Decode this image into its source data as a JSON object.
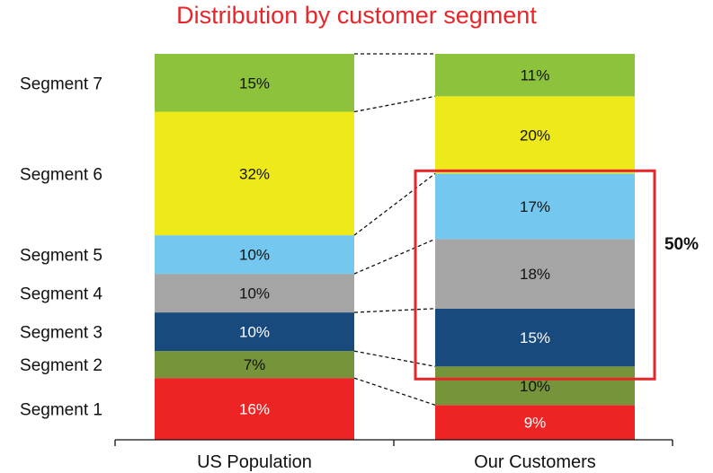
{
  "chart_data": {
    "type": "bar",
    "stacked": true,
    "orientation": "vertical",
    "title": "Distribution by customer segment",
    "categories": [
      "US Population",
      "Our Customers"
    ],
    "series": [
      {
        "name": "Segment 1",
        "values": [
          16,
          9
        ],
        "labels": [
          "16%",
          "9%"
        ],
        "color": "#ee2424",
        "label_color": "#ffffff"
      },
      {
        "name": "Segment 2",
        "values": [
          7,
          10
        ],
        "labels": [
          "7%",
          "10%"
        ],
        "color": "#76943a",
        "label_color": "#111111"
      },
      {
        "name": "Segment 3",
        "values": [
          10,
          15
        ],
        "labels": [
          "10%",
          "15%"
        ],
        "color": "#184a7e",
        "label_color": "#ffffff"
      },
      {
        "name": "Segment 4",
        "values": [
          10,
          18
        ],
        "labels": [
          "10%",
          "18%"
        ],
        "color": "#a5a5a5",
        "label_color": "#111111"
      },
      {
        "name": "Segment 5",
        "values": [
          10,
          17
        ],
        "labels": [
          "10%",
          "17%"
        ],
        "color": "#74c7ee",
        "label_color": "#111111"
      },
      {
        "name": "Segment 6",
        "values": [
          32,
          20
        ],
        "labels": [
          "32%",
          "20%"
        ],
        "color": "#eeea19",
        "label_color": "#111111"
      },
      {
        "name": "Segment 7",
        "values": [
          15,
          11
        ],
        "labels": [
          "15%",
          "11%"
        ],
        "color": "#8cc23c",
        "label_color": "#111111"
      }
    ],
    "highlight": {
      "category": "Our Customers",
      "segments": [
        "Segment 3",
        "Segment 4",
        "Segment 5"
      ],
      "label": "50%",
      "color": "#e8262a"
    },
    "connector_style": "dashed",
    "ylim": [
      0,
      100
    ],
    "legend": "left"
  }
}
